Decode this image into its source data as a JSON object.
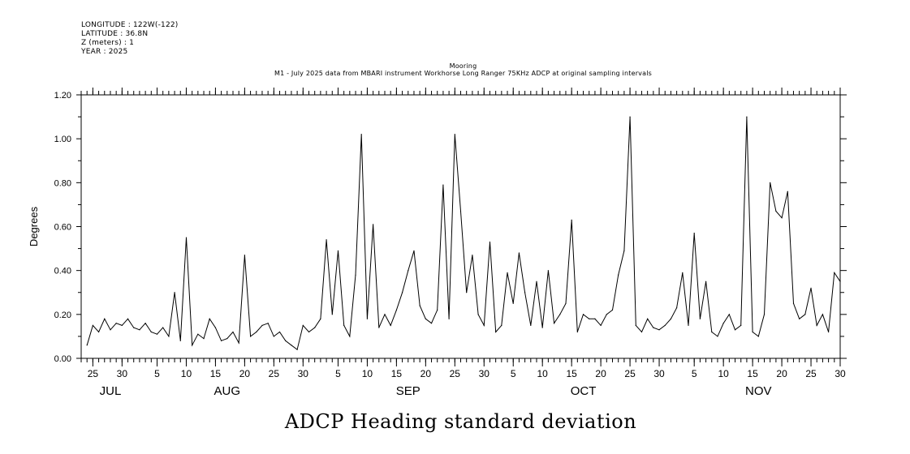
{
  "info": {
    "longitude": "LONGITUDE : 122W(-122)",
    "latitude": "LATITUDE : 36.8N",
    "z": "Z (meters) : 1",
    "year": "YEAR : 2025"
  },
  "header": {
    "line1": "Mooring",
    "line2": "M1 - July 2025 data from MBARI instrument Workhorse Long Ranger 75KHz ADCP at original sampling intervals"
  },
  "bottom_title": "ADCP Heading standard deviation",
  "chart_data": {
    "type": "line",
    "title": "ADCP Heading standard deviation",
    "xlabel": "",
    "ylabel": "Degrees",
    "ylim": [
      0.0,
      1.2
    ],
    "yticks": [
      "0.00",
      "0.20",
      "0.40",
      "0.60",
      "0.80",
      "1.00",
      "1.20"
    ],
    "xlim": [
      "2025-07-23",
      "2025-11-30"
    ],
    "xtick_labels": [
      {
        "date": "2025-07-25",
        "label": "25"
      },
      {
        "date": "2025-07-30",
        "label": "30"
      },
      {
        "date": "2025-08-05",
        "label": "5"
      },
      {
        "date": "2025-08-10",
        "label": "10"
      },
      {
        "date": "2025-08-15",
        "label": "15"
      },
      {
        "date": "2025-08-20",
        "label": "20"
      },
      {
        "date": "2025-08-25",
        "label": "25"
      },
      {
        "date": "2025-08-30",
        "label": "30"
      },
      {
        "date": "2025-09-05",
        "label": "5"
      },
      {
        "date": "2025-09-10",
        "label": "10"
      },
      {
        "date": "2025-09-15",
        "label": "15"
      },
      {
        "date": "2025-09-20",
        "label": "20"
      },
      {
        "date": "2025-09-25",
        "label": "25"
      },
      {
        "date": "2025-09-30",
        "label": "30"
      },
      {
        "date": "2025-10-05",
        "label": "5"
      },
      {
        "date": "2025-10-10",
        "label": "10"
      },
      {
        "date": "2025-10-15",
        "label": "15"
      },
      {
        "date": "2025-10-20",
        "label": "20"
      },
      {
        "date": "2025-10-25",
        "label": "25"
      },
      {
        "date": "2025-10-30",
        "label": "30"
      },
      {
        "date": "2025-11-05",
        "label": "5"
      },
      {
        "date": "2025-11-10",
        "label": "10"
      },
      {
        "date": "2025-11-15",
        "label": "15"
      },
      {
        "date": "2025-11-20",
        "label": "20"
      },
      {
        "date": "2025-11-25",
        "label": "25"
      },
      {
        "date": "2025-11-30",
        "label": "30"
      }
    ],
    "month_labels": [
      {
        "date": "2025-07-28",
        "label": "JUL"
      },
      {
        "date": "2025-08-17",
        "label": "AUG"
      },
      {
        "date": "2025-09-17",
        "label": "SEP"
      },
      {
        "date": "2025-10-17",
        "label": "OCT"
      },
      {
        "date": "2025-11-16",
        "label": "NOV"
      }
    ],
    "series": [
      {
        "x": [
          "2025-07-24",
          "2025-07-25",
          "2025-07-26",
          "2025-07-27",
          "2025-07-28",
          "2025-07-29",
          "2025-07-30",
          "2025-07-31",
          "2025-08-01",
          "2025-08-02",
          "2025-08-03",
          "2025-08-04",
          "2025-08-05",
          "2025-08-06",
          "2025-08-07",
          "2025-08-08",
          "2025-08-09",
          "2025-08-10",
          "2025-08-11",
          "2025-08-12",
          "2025-08-13",
          "2025-08-14",
          "2025-08-15",
          "2025-08-16",
          "2025-08-17",
          "2025-08-18",
          "2025-08-19",
          "2025-08-20",
          "2025-08-21",
          "2025-08-22",
          "2025-08-23",
          "2025-08-24",
          "2025-08-25",
          "2025-08-26",
          "2025-08-27",
          "2025-08-28",
          "2025-08-29",
          "2025-08-30",
          "2025-08-31",
          "2025-09-01",
          "2025-09-02",
          "2025-09-03",
          "2025-09-04",
          "2025-09-05",
          "2025-09-06",
          "2025-09-07",
          "2025-09-08",
          "2025-09-09",
          "2025-09-10",
          "2025-09-11",
          "2025-09-12",
          "2025-09-13",
          "2025-09-14",
          "2025-09-15",
          "2025-09-16",
          "2025-09-17",
          "2025-09-18",
          "2025-09-19",
          "2025-09-20",
          "2025-09-21",
          "2025-09-22",
          "2025-09-23",
          "2025-09-24",
          "2025-09-25",
          "2025-09-26",
          "2025-09-27",
          "2025-09-28",
          "2025-09-29",
          "2025-09-30",
          "2025-10-01",
          "2025-10-02",
          "2025-10-03",
          "2025-10-04",
          "2025-10-05",
          "2025-10-06",
          "2025-10-07",
          "2025-10-08",
          "2025-10-09",
          "2025-10-10",
          "2025-10-11",
          "2025-10-12",
          "2025-10-13",
          "2025-10-14",
          "2025-10-15",
          "2025-10-16",
          "2025-10-17",
          "2025-10-18",
          "2025-10-19",
          "2025-10-20",
          "2025-10-21",
          "2025-10-22",
          "2025-10-23",
          "2025-10-24",
          "2025-10-25",
          "2025-10-26",
          "2025-10-27",
          "2025-10-28",
          "2025-10-29",
          "2025-10-30",
          "2025-10-31",
          "2025-11-01",
          "2025-11-02",
          "2025-11-03",
          "2025-11-04",
          "2025-11-05",
          "2025-11-06",
          "2025-11-07",
          "2025-11-08",
          "2025-11-09",
          "2025-11-10",
          "2025-11-11",
          "2025-11-12",
          "2025-11-13",
          "2025-11-14",
          "2025-11-15",
          "2025-11-16",
          "2025-11-17",
          "2025-11-18",
          "2025-11-19",
          "2025-11-20",
          "2025-11-21",
          "2025-11-22",
          "2025-11-23",
          "2025-11-24",
          "2025-11-25",
          "2025-11-26",
          "2025-11-27",
          "2025-11-28",
          "2025-11-29",
          "2025-11-30"
        ],
        "y": [
          0.06,
          0.15,
          0.12,
          0.18,
          0.13,
          0.16,
          0.15,
          0.18,
          0.14,
          0.13,
          0.16,
          0.12,
          0.11,
          0.14,
          0.1,
          0.3,
          0.08,
          0.55,
          0.06,
          0.11,
          0.09,
          0.18,
          0.14,
          0.08,
          0.09,
          0.12,
          0.07,
          0.47,
          0.1,
          0.12,
          0.15,
          0.16,
          0.1,
          0.12,
          0.08,
          0.06,
          0.04,
          0.15,
          0.12,
          0.14,
          0.18,
          0.54,
          0.2,
          0.49,
          0.15,
          0.1,
          0.38,
          1.02,
          0.18,
          0.61,
          0.14,
          0.2,
          0.15,
          0.22,
          0.3,
          0.4,
          0.49,
          0.24,
          0.18,
          0.16,
          0.22,
          0.79,
          0.18,
          1.02,
          0.67,
          0.3,
          0.47,
          0.2,
          0.15,
          0.53,
          0.12,
          0.15,
          0.39,
          0.25,
          0.48,
          0.3,
          0.15,
          0.35,
          0.14,
          0.4,
          0.16,
          0.2,
          0.25,
          0.63,
          0.12,
          0.2,
          0.18,
          0.18,
          0.15,
          0.2,
          0.22,
          0.38,
          0.49,
          1.1,
          0.15,
          0.12,
          0.18,
          0.14,
          0.13,
          0.15,
          0.18,
          0.23,
          0.39,
          0.15,
          0.57,
          0.18,
          0.35,
          0.12,
          0.1,
          0.16,
          0.2,
          0.13,
          0.15,
          1.1,
          0.12,
          0.1,
          0.2,
          0.8,
          0.67,
          0.64,
          0.76,
          0.25,
          0.18,
          0.2,
          0.32,
          0.15,
          0.2,
          0.12,
          0.39,
          0.35
        ]
      }
    ]
  }
}
